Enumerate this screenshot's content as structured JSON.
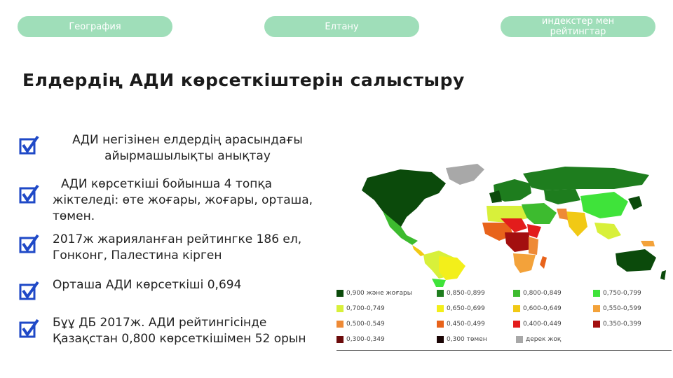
{
  "nav": {
    "tabs": [
      {
        "label": "География"
      },
      {
        "label": "Елтану"
      },
      {
        "label": "индекстер мен рейтингтар"
      }
    ]
  },
  "title": "Елдердің АДИ көрсеткіштерін салыстыру",
  "bullets": [
    {
      "text": "АДИ негізінен елдердің арасындағы айырмашылықты анықтау"
    },
    {
      "text": "АДИ көрсеткіші бойынша 4 топқа жіктеледі: өте жоғары, жоғары, орташа, төмен."
    },
    {
      "text": "2017ж жарияланған рейтингке 186 ел, Гонконг, Палестина кірген"
    },
    {
      "text": "Орташа АДИ көрсеткіші 0,694"
    },
    {
      "text": "Бұұ ДБ 2017ж. АДИ рейтингісінде Қазақстан 0,800 көрсеткішімен 52 орын"
    }
  ],
  "legend": [
    {
      "label": "0,900 және жоғары",
      "color": "#0b4a0b"
    },
    {
      "label": "0,850-0,899",
      "color": "#1e7d1e"
    },
    {
      "label": "0,800-0,849",
      "color": "#3dbb2f"
    },
    {
      "label": "0,750-0,799",
      "color": "#3fe33a"
    },
    {
      "label": "0,700-0,749",
      "color": "#d8f03a"
    },
    {
      "label": "0,650-0,699",
      "color": "#f3ef1a"
    },
    {
      "label": "0,600-0,649",
      "color": "#f1c915"
    },
    {
      "label": "0,550-0,599",
      "color": "#f3a23a"
    },
    {
      "label": "0,500-0,549",
      "color": "#ee8a36"
    },
    {
      "label": "0,450-0,499",
      "color": "#e8631b"
    },
    {
      "label": "0,400-0,449",
      "color": "#e31c1c"
    },
    {
      "label": "0,350-0,399",
      "color": "#a30f0f"
    },
    {
      "label": "0,300-0,349",
      "color": "#6b0b0b"
    },
    {
      "label": "0,300 төмен",
      "color": "#1a0505"
    },
    {
      "label": "дерек жоқ",
      "color": "#a8a8a8"
    }
  ],
  "colors": {
    "pill_bg": "#9fdeb9",
    "check_blue": "#1f49c7"
  }
}
